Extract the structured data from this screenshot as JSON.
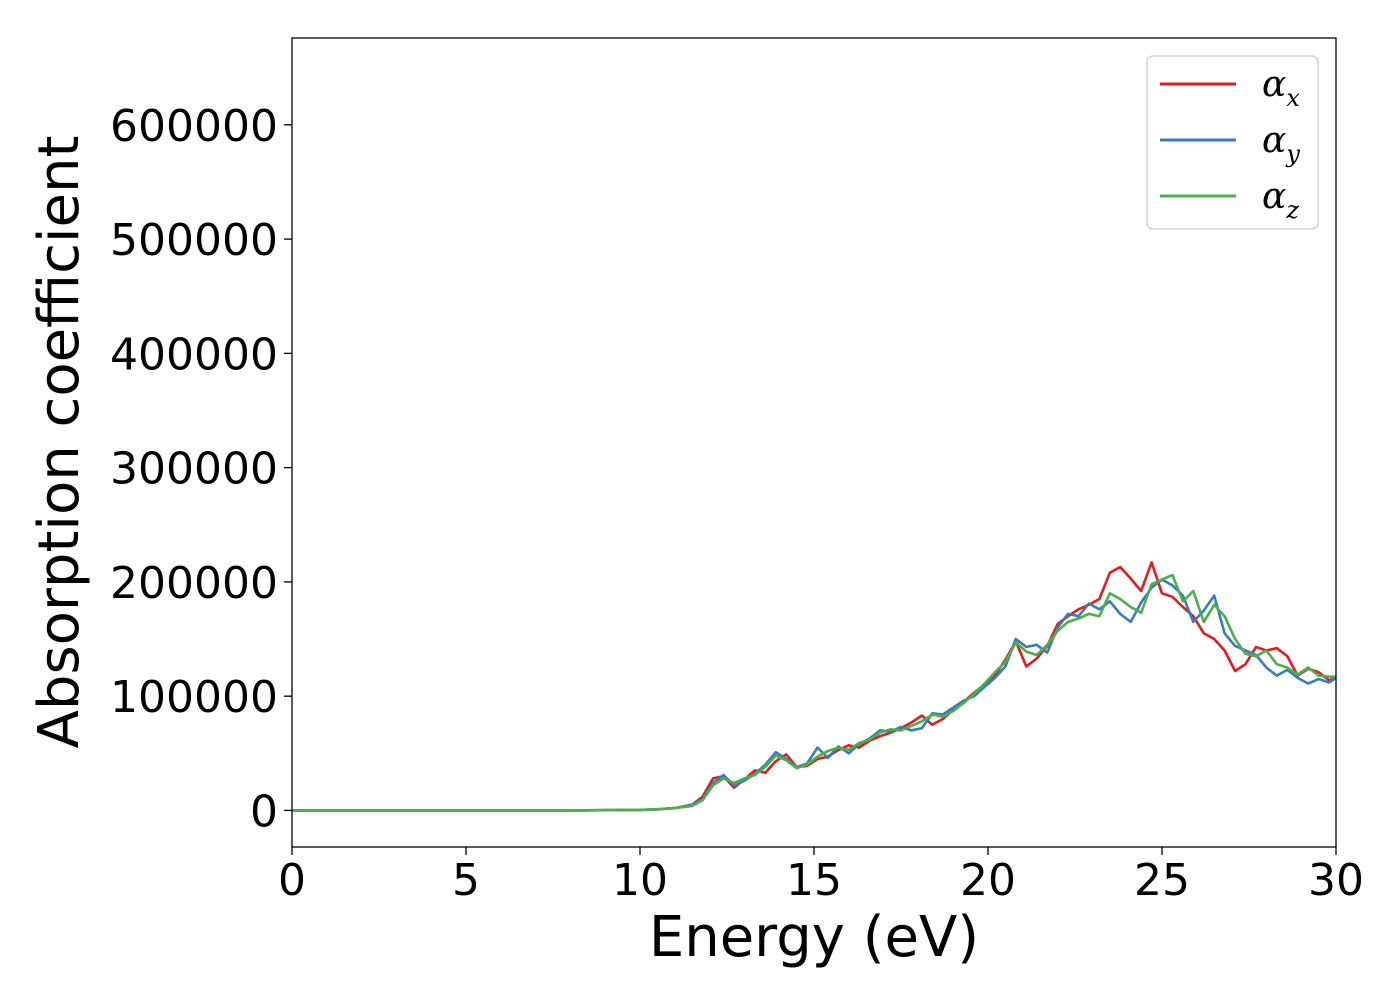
{
  "chart_data": {
    "type": "line",
    "xlabel": "Energy (eV)",
    "ylabel": "Absorption coefficient",
    "xlim": [
      0,
      30
    ],
    "ylim": [
      -32000,
      676000
    ],
    "xticks": [
      "0",
      "5",
      "10",
      "15",
      "20",
      "25",
      "30"
    ],
    "yticks": [
      "0",
      "100000",
      "200000",
      "300000",
      "400000",
      "500000",
      "600000"
    ],
    "grid": false,
    "legend_position": "top-right",
    "x": [
      0,
      2,
      4,
      6,
      8,
      10,
      10.5,
      11,
      11.5,
      11.8,
      12.1,
      12.4,
      12.7,
      13.0,
      13.3,
      13.6,
      13.9,
      14.2,
      14.5,
      14.8,
      15.1,
      15.4,
      15.7,
      16.0,
      16.3,
      16.6,
      16.9,
      17.2,
      17.5,
      17.8,
      18.1,
      18.4,
      18.7,
      19.0,
      19.3,
      19.6,
      19.9,
      20.2,
      20.5,
      20.8,
      21.1,
      21.4,
      21.7,
      22.0,
      22.3,
      22.6,
      22.9,
      23.2,
      23.5,
      23.8,
      24.1,
      24.4,
      24.7,
      25.0,
      25.3,
      25.6,
      25.9,
      26.2,
      26.5,
      26.8,
      27.1,
      27.4,
      27.7,
      28.0,
      28.3,
      28.6,
      28.9,
      29.2,
      29.5,
      29.8,
      30.0
    ],
    "series": [
      {
        "name": "α",
        "subscript": "x",
        "color": "#e41a1c",
        "values": [
          0,
          0,
          0,
          0,
          0,
          500,
          1000,
          2000,
          5000,
          12000,
          28000,
          30000,
          20000,
          27000,
          35000,
          33000,
          43000,
          49000,
          38000,
          39000,
          45000,
          47000,
          53000,
          57000,
          55000,
          61000,
          65000,
          68000,
          72000,
          77000,
          83000,
          75000,
          80000,
          88000,
          95000,
          103000,
          110000,
          118000,
          132000,
          148000,
          126000,
          133000,
          144000,
          163000,
          170000,
          176000,
          180000,
          185000,
          208000,
          213000,
          203000,
          192000,
          217000,
          190000,
          187000,
          178000,
          170000,
          155000,
          150000,
          140000,
          122000,
          128000,
          143000,
          140000,
          142000,
          135000,
          118000,
          124000,
          121000,
          114000,
          116000
        ]
      },
      {
        "name": "α",
        "subscript": "y",
        "color": "#377eb8",
        "values": [
          0,
          0,
          0,
          0,
          0,
          500,
          1000,
          2000,
          5000,
          10000,
          24000,
          31000,
          22000,
          26000,
          32000,
          40000,
          51000,
          45000,
          38000,
          41000,
          55000,
          46000,
          56000,
          50000,
          58000,
          63000,
          70000,
          69000,
          73000,
          70000,
          72000,
          85000,
          84000,
          90000,
          96000,
          100000,
          108000,
          116000,
          126000,
          150000,
          143000,
          145000,
          138000,
          160000,
          172000,
          170000,
          181000,
          176000,
          183000,
          172000,
          165000,
          182000,
          195000,
          202000,
          197000,
          188000,
          165000,
          175000,
          188000,
          155000,
          144000,
          140000,
          136000,
          125000,
          118000,
          123000,
          116000,
          111000,
          115000,
          112000,
          116000
        ]
      },
      {
        "name": "α",
        "subscript": "z",
        "color": "#4daf4a",
        "values": [
          0,
          0,
          0,
          0,
          0,
          500,
          1000,
          2000,
          4000,
          9000,
          22000,
          28000,
          24000,
          28000,
          31000,
          38000,
          48000,
          44000,
          37000,
          40000,
          47000,
          52000,
          55000,
          53000,
          59000,
          62000,
          68000,
          71000,
          70000,
          74000,
          78000,
          84000,
          82000,
          87000,
          94000,
          102000,
          111000,
          121000,
          130000,
          147000,
          139000,
          136000,
          145000,
          157000,
          165000,
          168000,
          172000,
          170000,
          190000,
          185000,
          178000,
          173000,
          198000,
          202000,
          206000,
          183000,
          192000,
          165000,
          180000,
          170000,
          150000,
          137000,
          135000,
          140000,
          128000,
          125000,
          119000,
          125000,
          118000,
          117000,
          117000
        ]
      }
    ]
  }
}
